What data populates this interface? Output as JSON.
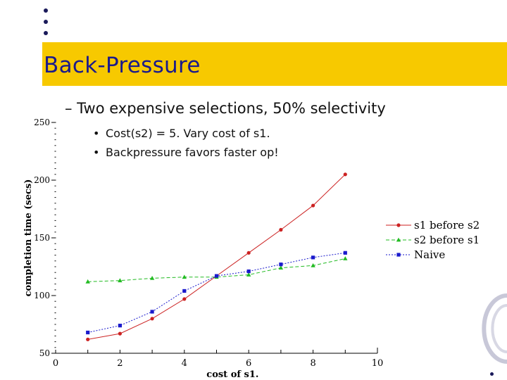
{
  "slide": {
    "title": "Back-Pressure",
    "bullet_main": "– Two expensive selections, 50% selectivity",
    "sub_bullets": [
      "Cost(s2) = 5.  Vary cost of s1.",
      "Backpressure favors faster op!"
    ],
    "sub_bullet_mark": "•",
    "accent_color": "#f7c900",
    "title_color": "#1a1a8c"
  },
  "chart_data": {
    "type": "line",
    "xlabel": "cost of s1.",
    "ylabel": "completion time (secs)",
    "xlim": [
      0,
      10
    ],
    "ylim": [
      50,
      250
    ],
    "xticks": [
      0,
      2,
      4,
      6,
      8,
      10
    ],
    "yticks": [
      50,
      100,
      150,
      200,
      250
    ],
    "grid": false,
    "legend_position": "right",
    "x": [
      1,
      2,
      3,
      4,
      5,
      6,
      7,
      8,
      9
    ],
    "series": [
      {
        "name": "s1 before s2",
        "color": "#cc2222",
        "marker": "circle",
        "dash": "solid",
        "values": [
          62,
          67,
          80,
          97,
          117,
          137,
          157,
          178,
          205
        ]
      },
      {
        "name": "s2 before s1",
        "color": "#22bb22",
        "marker": "triangle",
        "dash": "dashed",
        "values": [
          112,
          113,
          115,
          116,
          116,
          118,
          124,
          126,
          132
        ]
      },
      {
        "name": "Naive",
        "color": "#1a1acc",
        "marker": "square",
        "dash": "dotted",
        "values": [
          68,
          74,
          86,
          104,
          117,
          121,
          127,
          133,
          137
        ]
      }
    ]
  }
}
